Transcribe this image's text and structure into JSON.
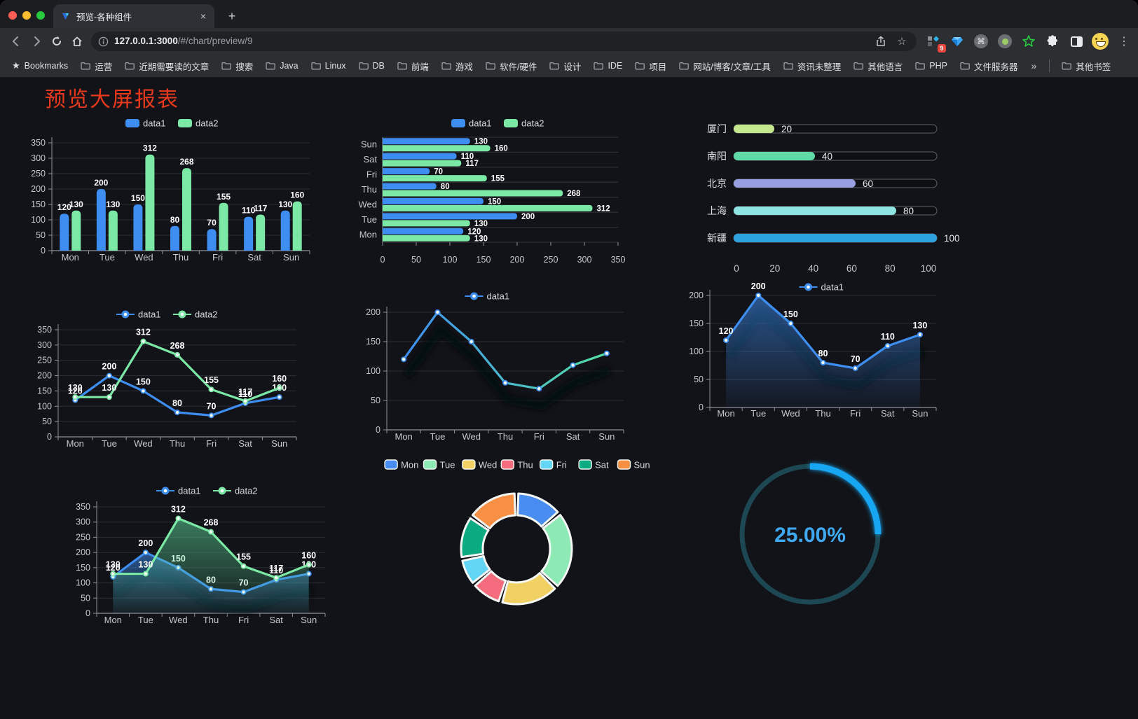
{
  "browser": {
    "tab": {
      "title": "预览-各种组件",
      "close_glyph": "×",
      "new_tab_glyph": "+"
    },
    "url_host": "127.0.0.1:3000",
    "url_path": "/#/chart/preview/9",
    "bookmarks_label": "Bookmarks",
    "bookmarks": [
      "运营",
      "近期需要读的文章",
      "搜索",
      "Java",
      "Linux",
      "DB",
      "前端",
      "游戏",
      "软件/硬件",
      "设计",
      "IDE",
      "项目",
      "网站/博客/文章/工具",
      "资讯未整理",
      "其他语言",
      "PHP",
      "文件服务器"
    ],
    "overflow_glyph": "»",
    "other_bookmarks_label": "其他书签",
    "extension_badge": "9",
    "command_glyph": "⌘",
    "menu_glyph": "⋮",
    "star_glyph": "☆",
    "bookmarks_star_glyph": "★"
  },
  "page": {
    "title": "预览大屏报表",
    "title_color": "#e8391d"
  },
  "chart_data": [
    {
      "id": "bar1",
      "type": "bar",
      "title": "",
      "categories": [
        "Mon",
        "Tue",
        "Wed",
        "Thu",
        "Fri",
        "Sat",
        "Sun"
      ],
      "series": [
        {
          "name": "data1",
          "color": "#3E8EF2",
          "values": [
            120,
            200,
            150,
            80,
            70,
            110,
            130
          ]
        },
        {
          "name": "data2",
          "color": "#7CE8A5",
          "values": [
            130,
            130,
            312,
            268,
            155,
            117,
            160
          ]
        }
      ],
      "ylim": [
        0,
        350
      ],
      "ytick_step": 50,
      "legend_position": "top",
      "grid": true,
      "value_labels": true
    },
    {
      "id": "hbar",
      "type": "hbar",
      "title": "",
      "categories": [
        "Mon",
        "Tue",
        "Wed",
        "Thu",
        "Fri",
        "Sat",
        "Sun"
      ],
      "series": [
        {
          "name": "data1",
          "color": "#3E8EF2",
          "values": [
            120,
            200,
            150,
            80,
            70,
            110,
            130
          ]
        },
        {
          "name": "data2",
          "color": "#7CE8A5",
          "values": [
            130,
            130,
            312,
            268,
            155,
            117,
            160
          ]
        }
      ],
      "xlim": [
        0,
        350
      ],
      "xtick_step": 50,
      "legend_position": "top",
      "value_labels": true
    },
    {
      "id": "prog",
      "type": "bar",
      "variant": "progress-pills",
      "items": [
        {
          "label": "厦门",
          "value": 20,
          "color": "#C3E88D"
        },
        {
          "label": "南阳",
          "value": 40,
          "color": "#5FD9A6"
        },
        {
          "label": "北京",
          "value": 60,
          "color": "#99A0E2"
        },
        {
          "label": "上海",
          "value": 80,
          "color": "#8EE4E1"
        },
        {
          "label": "新疆",
          "value": 100,
          "color": "#2BA2DE"
        }
      ],
      "xlim": [
        0,
        100
      ],
      "xticks": [
        0,
        20,
        40,
        60,
        80,
        100
      ]
    },
    {
      "id": "line2",
      "type": "line",
      "categories": [
        "Mon",
        "Tue",
        "Wed",
        "Thu",
        "Fri",
        "Sat",
        "Sun"
      ],
      "series": [
        {
          "name": "data1",
          "color": "#3E8EF2",
          "values": [
            120,
            200,
            150,
            80,
            70,
            110,
            130
          ]
        },
        {
          "name": "data2",
          "color": "#7CE8A5",
          "values": [
            130,
            130,
            312,
            268,
            155,
            117,
            160
          ]
        }
      ],
      "ylim": [
        0,
        350
      ],
      "ytick_step": 50,
      "legend_position": "top",
      "value_labels": true
    },
    {
      "id": "lineG",
      "type": "line",
      "categories": [
        "Mon",
        "Tue",
        "Wed",
        "Thu",
        "Fri",
        "Sat",
        "Sun"
      ],
      "series": [
        {
          "name": "data1",
          "color": "#3E8EF2",
          "gradient": [
            "#3E8EF2",
            "#55E2A5"
          ],
          "shadow": true,
          "values": [
            120,
            200,
            150,
            80,
            70,
            110,
            130
          ]
        }
      ],
      "ylim": [
        0,
        200
      ],
      "ytick_step": 50,
      "legend_position": "top",
      "value_labels": false
    },
    {
      "id": "area1",
      "type": "area",
      "categories": [
        "Mon",
        "Tue",
        "Wed",
        "Thu",
        "Fri",
        "Sat",
        "Sun"
      ],
      "series": [
        {
          "name": "data1",
          "color": "#3E8EF2",
          "fill": true,
          "shadow": true,
          "values": [
            120,
            200,
            150,
            80,
            70,
            110,
            130
          ]
        }
      ],
      "ylim": [
        0,
        200
      ],
      "ytick_step": 50,
      "legend_position": "top",
      "value_labels": true
    },
    {
      "id": "area2",
      "type": "area",
      "categories": [
        "Mon",
        "Tue",
        "Wed",
        "Thu",
        "Fri",
        "Sat",
        "Sun"
      ],
      "series": [
        {
          "name": "data1",
          "color": "#3E8EF2",
          "fill": true,
          "shadow": true,
          "values": [
            120,
            200,
            150,
            80,
            70,
            110,
            130
          ]
        },
        {
          "name": "data2",
          "color": "#7CE8A5",
          "fill": true,
          "values": [
            130,
            130,
            312,
            268,
            155,
            117,
            160
          ]
        }
      ],
      "ylim": [
        0,
        350
      ],
      "ytick_step": 50,
      "legend_position": "top",
      "value_labels": true
    },
    {
      "id": "donut",
      "type": "pie",
      "categories": [
        "Mon",
        "Tue",
        "Wed",
        "Thu",
        "Fri",
        "Sat",
        "Sun"
      ],
      "values": [
        120,
        200,
        150,
        80,
        70,
        110,
        130
      ],
      "colors": [
        "#4A8DF2",
        "#8DEAB4",
        "#F2D164",
        "#F56C7E",
        "#63D5F5",
        "#0CAB82",
        "#F79044"
      ],
      "inner_radius_ratio": 0.61,
      "legend_position": "top",
      "border_color": "#F5F7F5"
    },
    {
      "id": "gauge",
      "type": "gauge",
      "value": 25,
      "label": "25.00%",
      "color": "#17A6F2",
      "track_color": "#1D4752",
      "text_color": "#3FA9F1"
    }
  ]
}
